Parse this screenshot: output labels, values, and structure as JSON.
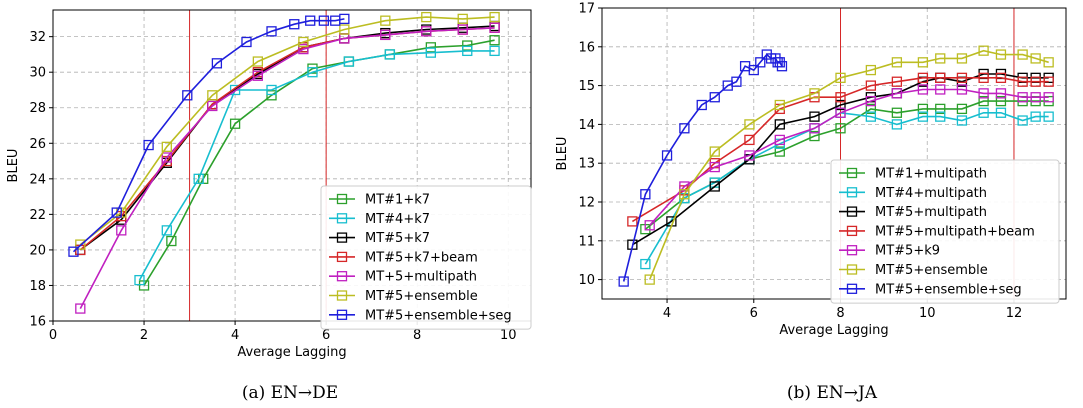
{
  "chart_data": [
    {
      "type": "line",
      "caption": "(a) EN→DE",
      "xlabel": "Average Lagging",
      "ylabel": "BLEU",
      "xlim": [
        0,
        10.5
      ],
      "ylim": [
        16,
        33.5
      ],
      "xticks": [
        0,
        2,
        4,
        6,
        8,
        10
      ],
      "yticks": [
        16,
        18,
        20,
        22,
        24,
        26,
        28,
        30,
        32
      ],
      "grid": true,
      "legend_position": "bottom-right",
      "vlines": [
        3,
        6
      ],
      "vline_color": "#d62728",
      "series": [
        {
          "name": "MT#1+k7",
          "color": "#2ca02c",
          "x": [
            2.0,
            2.6,
            3.3,
            4.0,
            4.8,
            5.7,
            6.5,
            7.4,
            8.3,
            9.1,
            9.7
          ],
          "y": [
            18.0,
            20.5,
            24.0,
            27.1,
            28.7,
            30.2,
            30.6,
            31.0,
            31.4,
            31.5,
            31.8
          ]
        },
        {
          "name": "MT#4+k7",
          "color": "#17becf",
          "x": [
            1.9,
            2.5,
            3.2,
            4.0,
            4.8,
            5.7,
            6.5,
            7.4,
            8.3,
            9.1,
            9.7
          ],
          "y": [
            18.3,
            21.1,
            24.0,
            29.0,
            29.0,
            30.0,
            30.6,
            31.0,
            31.1,
            31.2,
            31.2
          ]
        },
        {
          "name": "MT#5+k7",
          "color": "#000000",
          "x": [
            0.6,
            1.5,
            2.5,
            3.5,
            4.5,
            5.5,
            6.4,
            7.3,
            8.2,
            9.0,
            9.7
          ],
          "y": [
            20.0,
            21.7,
            24.9,
            28.2,
            29.9,
            31.4,
            31.9,
            32.2,
            32.4,
            32.5,
            32.6
          ]
        },
        {
          "name": "MT#5+k7+beam",
          "color": "#d62728",
          "x": [
            0.6,
            1.5,
            2.5,
            3.5,
            4.5,
            5.5,
            6.4,
            7.3,
            8.2,
            9.0,
            9.7
          ],
          "y": [
            20.0,
            21.9,
            25.0,
            28.2,
            30.0,
            31.4,
            31.9,
            32.1,
            32.3,
            32.4,
            32.5
          ]
        },
        {
          "name": "MT+5+multipath",
          "color": "#c020c0",
          "x": [
            0.6,
            1.5,
            2.5,
            3.5,
            4.5,
            5.5,
            6.4,
            7.3,
            8.2,
            9.0,
            9.7
          ],
          "y": [
            16.7,
            21.1,
            25.2,
            28.1,
            29.8,
            31.3,
            31.9,
            32.1,
            32.3,
            32.4,
            32.5
          ]
        },
        {
          "name": "MT#5+ensemble",
          "color": "#bcbd22",
          "x": [
            0.6,
            1.5,
            2.5,
            3.5,
            4.5,
            5.5,
            6.4,
            7.3,
            8.2,
            9.0,
            9.7
          ],
          "y": [
            20.3,
            22.1,
            25.8,
            28.7,
            30.6,
            31.7,
            32.4,
            32.9,
            33.1,
            33.0,
            33.1
          ]
        },
        {
          "name": "MT#5+ensemble+seg",
          "color": "#1f1fdc",
          "x": [
            0.45,
            1.4,
            2.1,
            2.95,
            3.6,
            4.25,
            4.8,
            5.3,
            5.65,
            5.95,
            6.2,
            6.4
          ],
          "y": [
            19.9,
            22.1,
            25.9,
            28.7,
            30.5,
            31.7,
            32.3,
            32.7,
            32.9,
            32.9,
            32.9,
            33.0
          ]
        }
      ]
    },
    {
      "type": "line",
      "caption": "(b) EN→JA",
      "xlabel": "Average Lagging",
      "ylabel": "BLEU",
      "xlim": [
        2.5,
        13.2
      ],
      "ylim": [
        9.5,
        17
      ],
      "xticks": [
        4,
        6,
        8,
        10,
        12
      ],
      "yticks": [
        10,
        11,
        12,
        13,
        14,
        15,
        16,
        17
      ],
      "grid": true,
      "legend_position": "bottom-right",
      "vlines": [
        8,
        12
      ],
      "vline_color": "#d62728",
      "series": [
        {
          "name": "MT#1+multipath",
          "color": "#2ca02c",
          "x": [
            3.5,
            4.4,
            5.1,
            5.9,
            6.6,
            7.4,
            8.0,
            8.7,
            9.3,
            9.9,
            10.3,
            10.8,
            11.3,
            11.7,
            12.2,
            12.5,
            12.8
          ],
          "y": [
            11.3,
            12.1,
            12.5,
            13.1,
            13.3,
            13.7,
            13.9,
            14.4,
            14.3,
            14.4,
            14.4,
            14.4,
            14.6,
            14.6,
            14.6,
            14.6,
            14.6
          ]
        },
        {
          "name": "MT#4+multipath",
          "color": "#17becf",
          "x": [
            3.5,
            4.4,
            5.1,
            5.9,
            6.6,
            7.4,
            8.0,
            8.7,
            9.3,
            9.9,
            10.3,
            10.8,
            11.3,
            11.7,
            12.2,
            12.5,
            12.8
          ],
          "y": [
            10.4,
            12.1,
            12.5,
            13.1,
            13.5,
            13.9,
            14.3,
            14.2,
            14.0,
            14.2,
            14.2,
            14.1,
            14.3,
            14.3,
            14.1,
            14.2,
            14.2
          ]
        },
        {
          "name": "MT#5+multipath",
          "color": "#000000",
          "x": [
            3.2,
            4.1,
            5.1,
            5.9,
            6.6,
            7.4,
            8.0,
            8.7,
            9.3,
            9.9,
            10.3,
            10.8,
            11.3,
            11.7,
            12.2,
            12.5,
            12.8
          ],
          "y": [
            10.9,
            11.5,
            12.4,
            13.1,
            14.0,
            14.2,
            14.5,
            14.7,
            14.8,
            15.1,
            15.2,
            15.1,
            15.3,
            15.3,
            15.2,
            15.2,
            15.2
          ]
        },
        {
          "name": "MT#5+multipath+beam",
          "color": "#d62728",
          "x": [
            3.2,
            4.4,
            5.1,
            5.9,
            6.6,
            7.4,
            8.0,
            8.7,
            9.3,
            9.9,
            10.3,
            10.8,
            11.3,
            11.7,
            12.2,
            12.5,
            12.8
          ],
          "y": [
            11.5,
            12.3,
            13.0,
            13.6,
            14.4,
            14.7,
            14.7,
            15.0,
            15.1,
            15.2,
            15.2,
            15.2,
            15.2,
            15.2,
            15.1,
            15.1,
            15.1
          ]
        },
        {
          "name": "MT#5+k9",
          "color": "#c020c0",
          "x": [
            3.6,
            4.4,
            5.1,
            5.9,
            6.6,
            7.4,
            8.0,
            8.7,
            9.3,
            9.9,
            10.3,
            10.8,
            11.3,
            11.7,
            12.2,
            12.5,
            12.8
          ],
          "y": [
            11.4,
            12.4,
            12.9,
            13.2,
            13.6,
            13.9,
            14.3,
            14.6,
            14.8,
            14.9,
            14.9,
            14.9,
            14.8,
            14.8,
            14.7,
            14.7,
            14.7
          ]
        },
        {
          "name": "MT#5+ensemble",
          "color": "#bcbd22",
          "x": [
            3.6,
            4.4,
            5.1,
            5.9,
            6.6,
            7.4,
            8.0,
            8.7,
            9.3,
            9.9,
            10.3,
            10.8,
            11.3,
            11.7,
            12.2,
            12.5,
            12.8
          ],
          "y": [
            10.0,
            12.2,
            13.3,
            14.0,
            14.5,
            14.8,
            15.2,
            15.4,
            15.6,
            15.6,
            15.7,
            15.7,
            15.9,
            15.8,
            15.8,
            15.7,
            15.6
          ]
        },
        {
          "name": "MT#5+ensemble+seg",
          "color": "#1f1fdc",
          "x": [
            3.0,
            3.5,
            4.0,
            4.4,
            4.8,
            5.1,
            5.4,
            5.6,
            5.8,
            6.0,
            6.15,
            6.3,
            6.4,
            6.5,
            6.55,
            6.6,
            6.65
          ],
          "y": [
            9.95,
            12.2,
            13.2,
            13.9,
            14.5,
            14.7,
            15.0,
            15.1,
            15.5,
            15.4,
            15.6,
            15.8,
            15.7,
            15.7,
            15.6,
            15.6,
            15.5
          ]
        }
      ]
    }
  ]
}
